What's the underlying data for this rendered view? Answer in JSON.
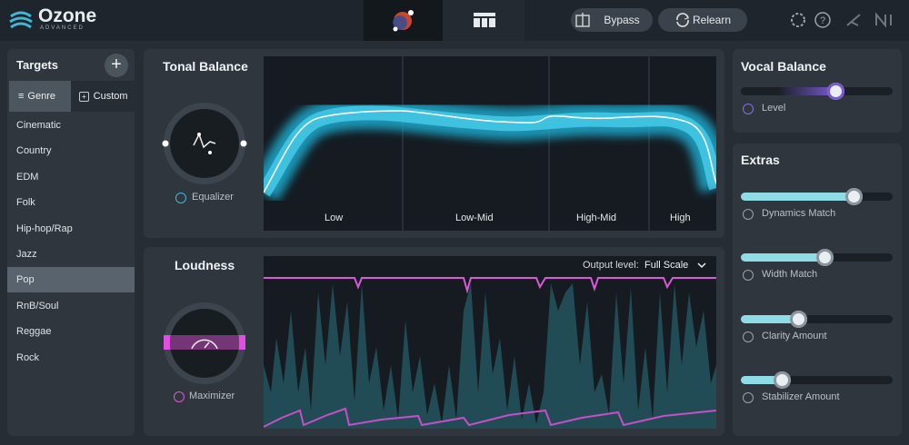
{
  "header": {
    "logo": "Ozone",
    "edition": "ADVANCED",
    "bypass": "Bypass",
    "relearn": "Relearn"
  },
  "targets": {
    "title": "Targets",
    "tabs": [
      "Genre",
      "Custom"
    ],
    "genres": [
      "Cinematic",
      "Country",
      "EDM",
      "Folk",
      "Hip-hop/Rap",
      "Jazz",
      "Pop",
      "RnB/Soul",
      "Reggae",
      "Rock"
    ]
  },
  "tonal_balance": {
    "title": "Tonal Balance",
    "module": "Equalizer",
    "bands": [
      "Low",
      "Low-Mid",
      "High-Mid",
      "High"
    ]
  },
  "loudness": {
    "title": "Loudness",
    "module": "Maximizer",
    "output_label": "Output level:",
    "output_value": "Full Scale"
  },
  "vocal_balance": {
    "title": "Vocal Balance",
    "slider": {
      "label": "Level",
      "value": 0.62
    }
  },
  "extras": {
    "title": "Extras",
    "sliders": [
      {
        "label": "Dynamics Match",
        "value": 0.74
      },
      {
        "label": "Width Match",
        "value": 0.55
      },
      {
        "label": "Clarity Amount",
        "value": 0.38
      },
      {
        "label": "Stabilizer Amount",
        "value": 0.27
      }
    ]
  }
}
